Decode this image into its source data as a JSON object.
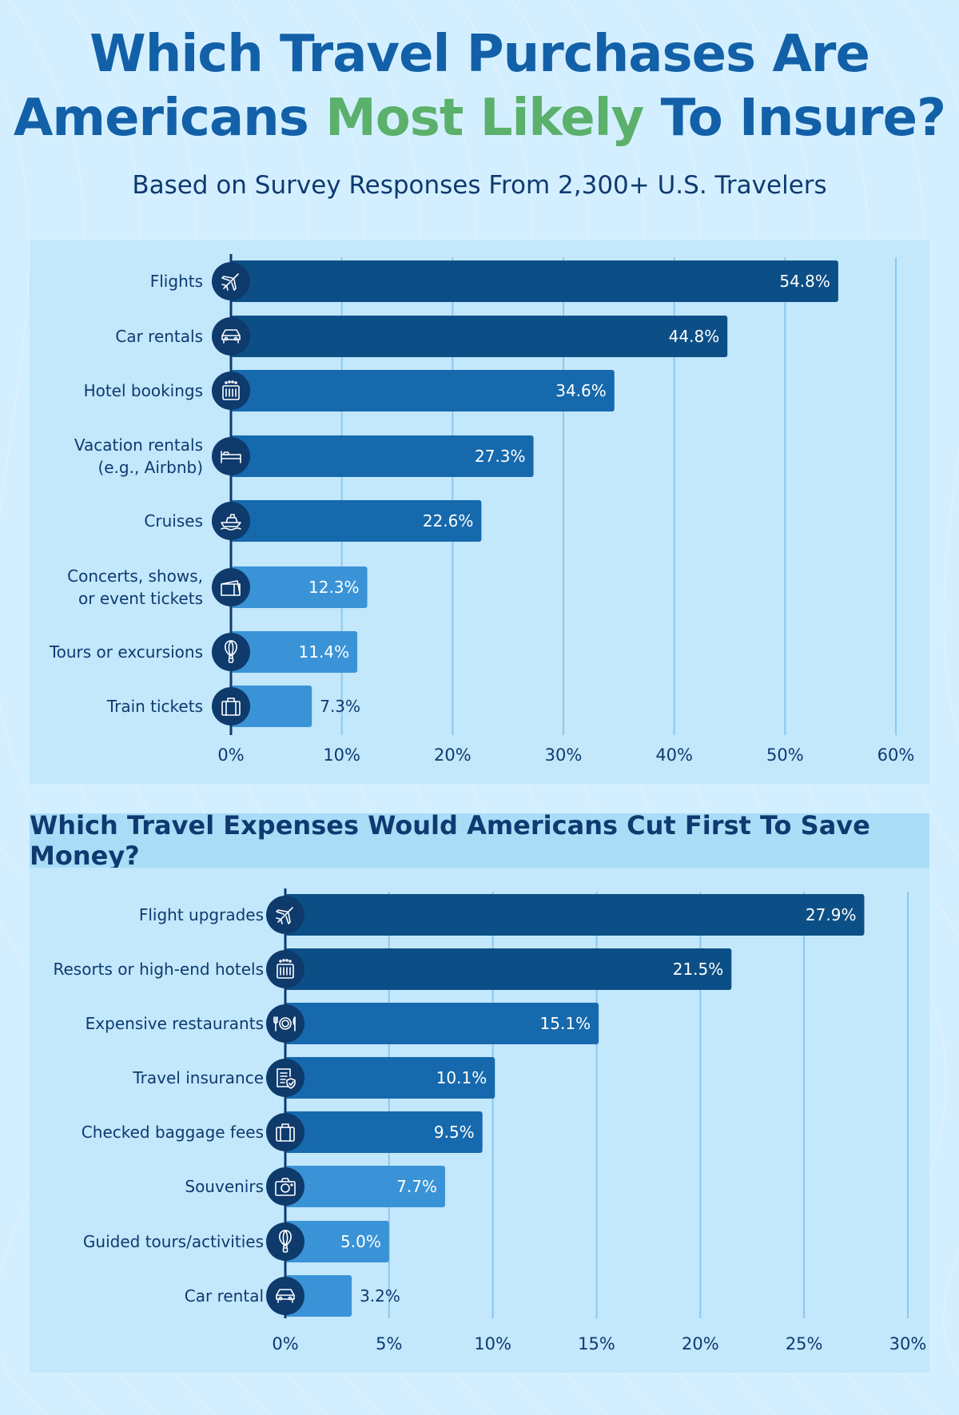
{
  "title": {
    "line1": "Which Travel Purchases Are",
    "line2_pre": "Americans ",
    "line2_highlight": "Most Likely",
    "line2_post": " To Insure?"
  },
  "subtitle": "Based on Survey Responses From 2,300+ U.S. Travelers",
  "section2_title": "Which Travel Expenses Would Americans Cut First To Save Money?",
  "colors": {
    "bar_dark": "#0c4f86",
    "bar_mid": "#1669ad",
    "bar_light": "#3a93d6",
    "icon_circle": "#0e3a6c",
    "grid": "#8cc8ee",
    "axis": "#0e3a70"
  },
  "chart_data": [
    {
      "type": "bar",
      "orientation": "horizontal",
      "title": "Which Travel Purchases Are Americans Most Likely To Insure?",
      "categories": [
        [
          "Flights"
        ],
        [
          "Car rentals"
        ],
        [
          "Hotel bookings"
        ],
        [
          "Vacation rentals",
          "(e.g., Airbnb)"
        ],
        [
          "Cruises"
        ],
        [
          "Concerts, shows,",
          "or event tickets"
        ],
        [
          "Tours or excursions"
        ],
        [
          "Train tickets"
        ]
      ],
      "icons": [
        "plane-icon",
        "car-icon",
        "hotel-icon",
        "bed-icon",
        "ship-icon",
        "ticket-icon",
        "balloon-icon",
        "suitcase-icon"
      ],
      "values": [
        54.8,
        44.8,
        34.6,
        27.3,
        22.6,
        12.3,
        11.4,
        7.3
      ],
      "value_labels": [
        "54.8%",
        "44.8%",
        "34.6%",
        "27.3%",
        "22.6%",
        "12.3%",
        "11.4%",
        "7.3%"
      ],
      "xlim": [
        0,
        60
      ],
      "ticks": [
        0,
        10,
        20,
        30,
        40,
        50,
        60
      ],
      "tick_labels": [
        "0%",
        "10%",
        "20%",
        "30%",
        "40%",
        "50%",
        "60%"
      ],
      "grid": true
    },
    {
      "type": "bar",
      "orientation": "horizontal",
      "title": "Which Travel Expenses Would Americans Cut First To Save Money?",
      "categories": [
        [
          "Flight upgrades"
        ],
        [
          "Resorts or high-end hotels"
        ],
        [
          "Expensive restaurants"
        ],
        [
          "Travel insurance"
        ],
        [
          "Checked baggage fees"
        ],
        [
          "Souvenirs"
        ],
        [
          "Guided tours/activities"
        ],
        [
          "Car rental"
        ]
      ],
      "icons": [
        "plane-icon",
        "hotel-icon",
        "dining-icon",
        "document-shield-icon",
        "suitcase-icon",
        "camera-icon",
        "balloon-icon",
        "car-icon"
      ],
      "values": [
        27.9,
        21.5,
        15.1,
        10.1,
        9.5,
        7.7,
        5.0,
        3.2
      ],
      "value_labels": [
        "27.9%",
        "21.5%",
        "15.1%",
        "10.1%",
        "9.5%",
        "7.7%",
        "5.0%",
        "3.2%"
      ],
      "xlim": [
        0,
        30
      ],
      "ticks": [
        0,
        5,
        10,
        15,
        20,
        25,
        30
      ],
      "tick_labels": [
        "0%",
        "5%",
        "10%",
        "15%",
        "20%",
        "25%",
        "30%"
      ],
      "grid": true
    }
  ]
}
